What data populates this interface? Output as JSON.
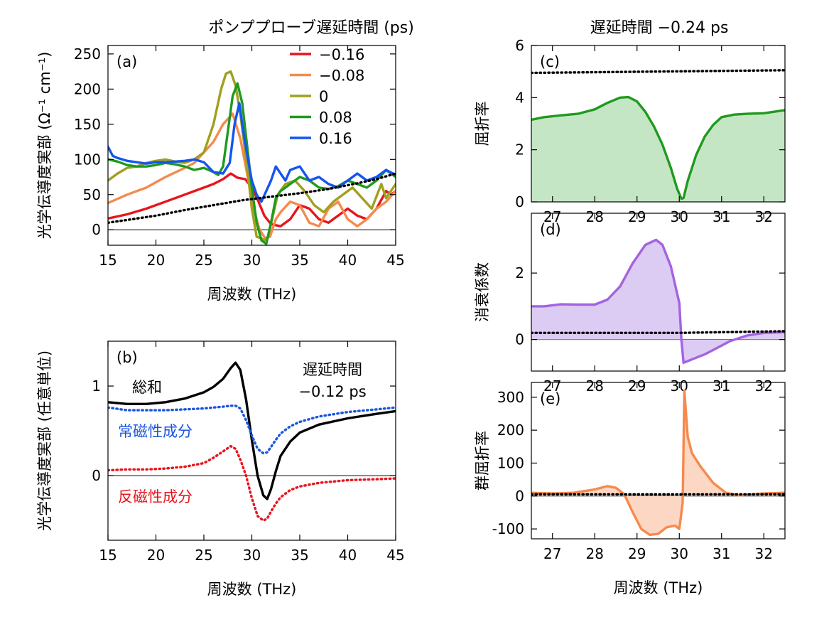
{
  "header_a": "ポンププローブ遅延時間 (ps)",
  "header_right": "遅延時間 −0.24 ps",
  "chart_data": [
    {
      "id": "a",
      "panel_label": "(a)",
      "type": "line",
      "xlabel": "周波数 (THz)",
      "ylabel": "光学伝導度実部 (Ω⁻¹ cm⁻¹)",
      "xlim": [
        15,
        45
      ],
      "ylim": [
        -22,
        262
      ],
      "xticks": [
        15,
        20,
        25,
        30,
        35,
        40,
        45
      ],
      "yticks": [
        0,
        50,
        100,
        150,
        200,
        250
      ],
      "zero_line": true,
      "legend_position": "top-right",
      "series": [
        {
          "name": "−0.16",
          "color": "#e8141c",
          "x": [
            15,
            17,
            19,
            21,
            23,
            25,
            26,
            27,
            27.8,
            28.5,
            29.3,
            30,
            30.7,
            31.3,
            32,
            33,
            34,
            35,
            36,
            37,
            38,
            39,
            40,
            41,
            42,
            43,
            44,
            44.5,
            45
          ],
          "y": [
            16,
            22,
            30,
            40,
            50,
            60,
            65,
            72,
            80,
            74,
            72,
            60,
            40,
            20,
            8,
            5,
            15,
            35,
            30,
            15,
            10,
            20,
            30,
            20,
            15,
            30,
            55,
            50,
            55
          ]
        },
        {
          "name": "−0.08",
          "color": "#f58a4e",
          "x": [
            15,
            17,
            19,
            21,
            23,
            24,
            25,
            26,
            27,
            28,
            28.8,
            29.5,
            30.2,
            30.8,
            31.4,
            31.9,
            32.5,
            33,
            34,
            35,
            36,
            37,
            38,
            39,
            40,
            41,
            42,
            43,
            44,
            45
          ],
          "y": [
            38,
            50,
            60,
            75,
            88,
            95,
            110,
            125,
            150,
            165,
            130,
            80,
            30,
            0,
            -12,
            -10,
            15,
            25,
            40,
            35,
            10,
            5,
            30,
            40,
            15,
            5,
            15,
            30,
            40,
            55
          ]
        },
        {
          "name": "0",
          "color": "#a0a01e",
          "x": [
            15,
            16,
            17,
            18,
            19,
            20,
            21,
            22,
            23,
            24,
            25,
            26,
            26.8,
            27.3,
            27.8,
            28.3,
            28.8,
            29.5,
            30,
            30.5,
            31,
            31.3,
            31.7,
            32.2,
            32.7,
            33.5,
            34.5,
            35.5,
            36.5,
            37.5,
            38.5,
            39.5,
            40.5,
            41.5,
            42.5,
            43.5,
            44,
            45
          ],
          "y": [
            70,
            80,
            88,
            90,
            95,
            98,
            100,
            97,
            95,
            100,
            110,
            150,
            200,
            222,
            225,
            205,
            165,
            90,
            30,
            -10,
            -12,
            -15,
            -10,
            20,
            50,
            65,
            70,
            55,
            35,
            25,
            40,
            50,
            60,
            45,
            30,
            65,
            45,
            65
          ]
        },
        {
          "name": "0.08",
          "color": "#1f9a1f",
          "x": [
            15,
            16,
            17,
            18,
            19,
            20,
            21,
            22,
            23,
            24,
            25,
            26,
            26.5,
            27,
            27.5,
            28,
            28.5,
            29,
            29.5,
            30,
            30.5,
            31,
            31.5,
            32,
            32.5,
            33,
            33.5,
            34,
            35,
            36,
            37,
            38,
            39,
            40,
            41,
            42,
            43,
            44,
            45
          ],
          "y": [
            100,
            97,
            92,
            90,
            90,
            92,
            95,
            93,
            90,
            85,
            88,
            82,
            78,
            90,
            140,
            190,
            208,
            180,
            120,
            60,
            10,
            -15,
            -20,
            10,
            45,
            55,
            60,
            65,
            75,
            70,
            60,
            58,
            62,
            70,
            65,
            60,
            70,
            85,
            75
          ]
        },
        {
          "name": "0.16",
          "color": "#1454f0",
          "x": [
            15,
            15.5,
            16,
            17,
            18,
            19,
            20,
            21,
            22,
            23,
            24,
            25,
            26,
            27,
            27.7,
            28.2,
            28.7,
            29.1,
            29.6,
            30,
            30.5,
            31,
            31.5,
            32,
            32.5,
            33,
            33.5,
            34,
            35,
            36,
            37,
            38,
            39,
            40,
            41,
            42,
            43,
            44,
            45
          ],
          "y": [
            118,
            105,
            102,
            98,
            96,
            94,
            96,
            96,
            97,
            98,
            100,
            96,
            82,
            80,
            95,
            150,
            180,
            140,
            100,
            70,
            50,
            40,
            55,
            70,
            90,
            80,
            70,
            85,
            90,
            70,
            75,
            65,
            60,
            70,
            80,
            70,
            75,
            85,
            78
          ]
        },
        {
          "name": "",
          "color": "#000000",
          "dotted": true,
          "x": [
            15,
            17,
            20,
            23,
            26,
            29,
            32,
            35,
            38,
            41,
            43,
            45
          ],
          "y": [
            10,
            14,
            20,
            28,
            35,
            42,
            47,
            52,
            58,
            66,
            72,
            80
          ]
        }
      ]
    },
    {
      "id": "b",
      "panel_label": "(b)",
      "type": "line",
      "xlabel": "周波数 (THz)",
      "ylabel": "光学伝導度実部 (任意単位)",
      "xlim": [
        15,
        45
      ],
      "ylim": [
        -0.72,
        1.5
      ],
      "xticks": [
        15,
        20,
        25,
        30,
        35,
        40,
        45
      ],
      "yticks": [
        0,
        1
      ],
      "zero_line": true,
      "annotation": [
        "遅延時間",
        "−0.12 ps"
      ],
      "series": [
        {
          "name": "総和",
          "color": "#000000",
          "x": [
            15,
            17,
            19,
            21,
            23,
            25,
            26,
            27,
            27.8,
            28.3,
            28.8,
            29.4,
            30,
            30.6,
            31.2,
            31.6,
            32,
            32.5,
            33,
            34,
            35,
            37,
            40,
            43,
            45
          ],
          "y": [
            0.82,
            0.8,
            0.8,
            0.82,
            0.86,
            0.93,
            0.99,
            1.08,
            1.2,
            1.26,
            1.18,
            0.85,
            0.4,
            0.0,
            -0.22,
            -0.26,
            -0.15,
            0.05,
            0.22,
            0.38,
            0.48,
            0.57,
            0.64,
            0.69,
            0.72
          ]
        },
        {
          "name": "常磁性成分",
          "color": "#1a55dd",
          "dotted": true,
          "x": [
            15,
            17,
            19,
            21,
            23,
            25,
            26,
            27,
            27.8,
            28.3,
            28.8,
            29.4,
            30,
            30.6,
            31.2,
            31.6,
            32,
            32.5,
            33,
            34,
            35,
            37,
            40,
            43,
            45
          ],
          "y": [
            0.76,
            0.73,
            0.73,
            0.73,
            0.74,
            0.75,
            0.76,
            0.77,
            0.78,
            0.78,
            0.75,
            0.62,
            0.45,
            0.3,
            0.25,
            0.26,
            0.32,
            0.4,
            0.47,
            0.55,
            0.6,
            0.66,
            0.71,
            0.74,
            0.76
          ]
        },
        {
          "name": "反磁性成分",
          "color": "#e8141c",
          "dotted": true,
          "x": [
            15,
            17,
            19,
            21,
            23,
            25,
            26,
            27,
            27.8,
            28.3,
            28.8,
            29.4,
            30,
            30.6,
            31.2,
            31.6,
            32,
            32.5,
            33,
            34,
            35,
            37,
            40,
            43,
            45
          ],
          "y": [
            0.06,
            0.07,
            0.07,
            0.08,
            0.1,
            0.14,
            0.2,
            0.27,
            0.33,
            0.3,
            0.18,
            0.0,
            -0.25,
            -0.45,
            -0.5,
            -0.48,
            -0.4,
            -0.31,
            -0.24,
            -0.16,
            -0.12,
            -0.08,
            -0.05,
            -0.04,
            -0.03
          ]
        }
      ]
    },
    {
      "id": "c",
      "panel_label": "(c)",
      "type": "area",
      "ylabel": "屈折率",
      "xlim": [
        26.5,
        32.5
      ],
      "ylim": [
        0,
        6
      ],
      "xticks": [
        27,
        28,
        29,
        30,
        31,
        32
      ],
      "yticks": [
        0,
        2,
        4,
        6
      ],
      "series": [
        {
          "name": "",
          "color": "#1f9a1f",
          "fill": "#c5e6c5",
          "x": [
            26.5,
            26.8,
            27.2,
            27.6,
            28,
            28.3,
            28.6,
            28.8,
            29,
            29.2,
            29.4,
            29.6,
            29.8,
            29.95,
            30.05,
            30.1,
            30.2,
            30.4,
            30.6,
            30.8,
            31,
            31.3,
            31.6,
            32,
            32.5
          ],
          "y": [
            3.15,
            3.25,
            3.32,
            3.38,
            3.55,
            3.8,
            4.0,
            4.02,
            3.85,
            3.45,
            2.9,
            2.2,
            1.3,
            0.5,
            0.12,
            0.15,
            0.8,
            1.8,
            2.5,
            2.95,
            3.25,
            3.35,
            3.38,
            3.4,
            3.52
          ]
        },
        {
          "name": "",
          "color": "#000000",
          "dotted": true,
          "x": [
            26.5,
            32.5
          ],
          "y": [
            4.95,
            5.05
          ]
        }
      ]
    },
    {
      "id": "d",
      "panel_label": "(d)",
      "type": "area",
      "ylabel": "消衰係数",
      "xlim": [
        26.5,
        32.5
      ],
      "ylim": [
        -0.95,
        3.8
      ],
      "xticks": [
        27,
        28,
        29,
        30,
        31,
        32
      ],
      "yticks": [
        0,
        2
      ],
      "zero_line": true,
      "series": [
        {
          "name": "",
          "color": "#a463e0",
          "fill": "#dccbf3",
          "x": [
            26.5,
            26.8,
            27.2,
            27.6,
            28,
            28.3,
            28.6,
            28.9,
            29.2,
            29.45,
            29.6,
            29.8,
            30.0,
            30.05,
            30.1,
            30.3,
            30.6,
            30.9,
            31.2,
            31.6,
            32,
            32.5
          ],
          "y": [
            1.0,
            1.0,
            1.06,
            1.05,
            1.05,
            1.2,
            1.6,
            2.3,
            2.85,
            3.0,
            2.85,
            2.2,
            1.1,
            0.0,
            -0.7,
            -0.6,
            -0.45,
            -0.25,
            -0.05,
            0.12,
            0.2,
            0.22
          ]
        },
        {
          "name": "",
          "color": "#000000",
          "dotted": true,
          "x": [
            26.5,
            30,
            32.5
          ],
          "y": [
            0.2,
            0.2,
            0.25
          ]
        }
      ]
    },
    {
      "id": "e",
      "panel_label": "(e)",
      "type": "area",
      "ylabel": "群屈折率",
      "xlabel": "周波数 (THz)",
      "xlim": [
        26.5,
        32.5
      ],
      "ylim": [
        -130,
        345
      ],
      "xticks": [
        27,
        28,
        29,
        30,
        31,
        32
      ],
      "yticks": [
        -100,
        0,
        100,
        200,
        300
      ],
      "zero_line": true,
      "series": [
        {
          "name": "",
          "color": "#f58a4e",
          "fill": "#fbd7c4",
          "x": [
            26.5,
            27,
            27.5,
            28,
            28.3,
            28.5,
            28.7,
            28.9,
            29.1,
            29.3,
            29.5,
            29.7,
            29.9,
            30.0,
            30.08,
            30.12,
            30.2,
            30.3,
            30.5,
            30.8,
            31.1,
            31.4,
            31.7,
            32,
            32.5
          ],
          "y": [
            10,
            8,
            10,
            20,
            30,
            25,
            5,
            -50,
            -100,
            -118,
            -115,
            -95,
            -90,
            -100,
            -20,
            320,
            180,
            130,
            90,
            40,
            10,
            2,
            5,
            8,
            10
          ]
        },
        {
          "name": "",
          "color": "#000000",
          "dotted": true,
          "x": [
            26.5,
            32.5
          ],
          "y": [
            5,
            5
          ]
        }
      ]
    }
  ]
}
